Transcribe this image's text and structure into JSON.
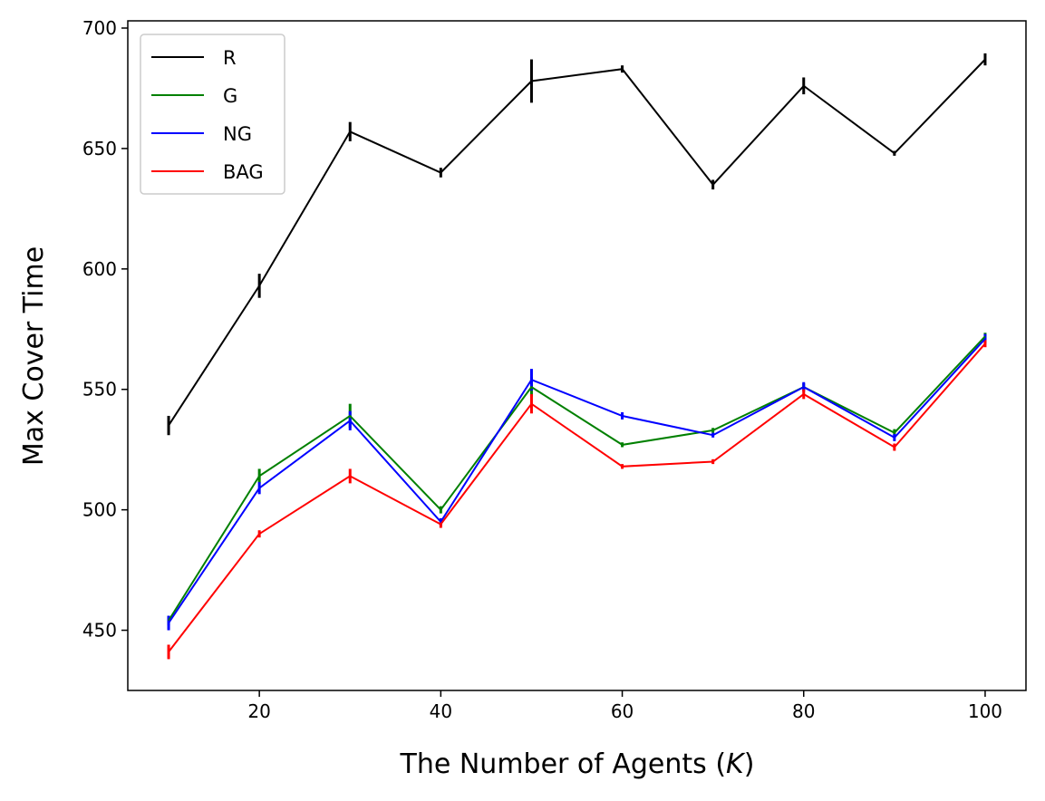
{
  "chart_data": {
    "type": "line",
    "title": "",
    "xlabel": "The Number of Agents (K)",
    "xlabel_parts": {
      "prefix": "The Number of Agents (",
      "var": "K",
      "suffix": ")"
    },
    "ylabel": "Max Cover Time",
    "xlim": [
      5.5,
      104.5
    ],
    "ylim": [
      425,
      703
    ],
    "xticks": [
      20,
      40,
      60,
      80,
      100
    ],
    "yticks": [
      450,
      500,
      550,
      600,
      650,
      700
    ],
    "grid": false,
    "legend_position": "upper-left",
    "x": [
      10,
      20,
      30,
      40,
      50,
      60,
      70,
      80,
      90,
      100
    ],
    "series": [
      {
        "name": "R",
        "color": "#000000",
        "values": [
          535,
          593,
          657,
          640,
          678,
          683,
          635,
          676,
          648,
          687
        ],
        "errors": [
          4,
          5,
          4,
          2,
          9,
          1.5,
          2,
          3.5,
          1,
          2.5
        ]
      },
      {
        "name": "G",
        "color": "#008000",
        "values": [
          454,
          514,
          539,
          500,
          551,
          527,
          533,
          551,
          532,
          572
        ],
        "errors": [
          2,
          3,
          5,
          1.5,
          4,
          1,
          1,
          1.5,
          1.5,
          1.5
        ]
      },
      {
        "name": "NG",
        "color": "#0000ff",
        "values": [
          453,
          509,
          537,
          495,
          554,
          539,
          531,
          551,
          530,
          571
        ],
        "errors": [
          3,
          2.5,
          4,
          1.5,
          4.5,
          1.5,
          1,
          2,
          1.5,
          2
        ]
      },
      {
        "name": "BAG",
        "color": "#ff0000",
        "values": [
          441,
          490,
          514,
          494,
          544,
          518,
          520,
          548,
          526,
          569
        ],
        "errors": [
          3,
          1.5,
          3,
          1.5,
          4,
          1,
          1,
          2,
          1.5,
          1.5
        ]
      }
    ]
  }
}
